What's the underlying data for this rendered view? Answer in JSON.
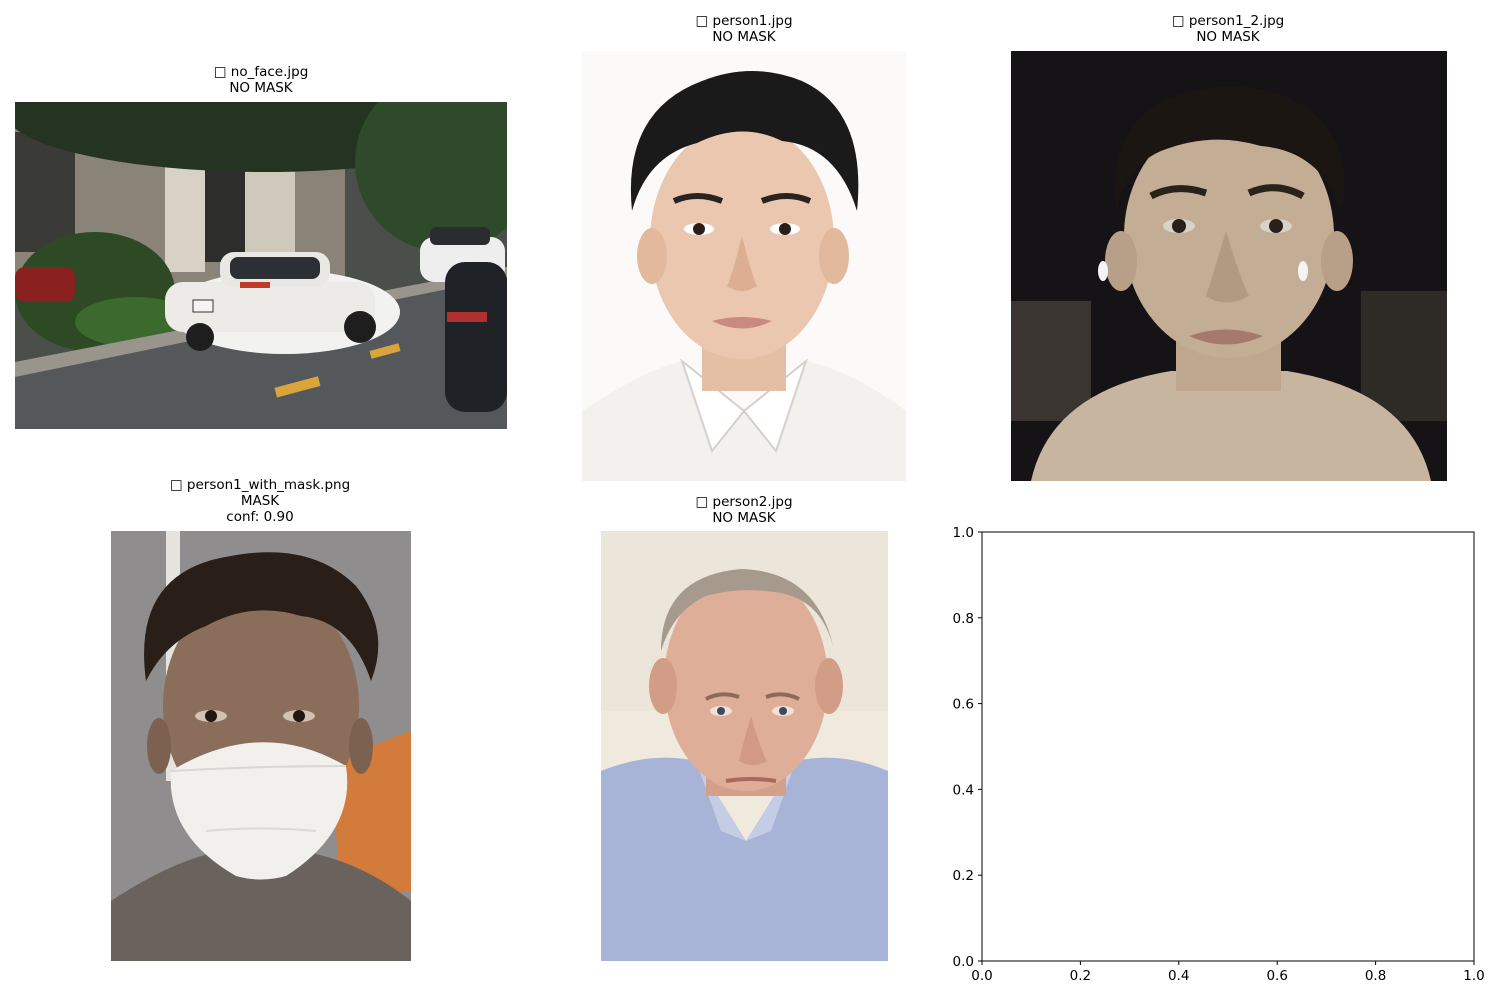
{
  "panels": [
    {
      "icon": "image-placeholder-glyph",
      "filename": "no_face.jpg",
      "status": "NO MASK",
      "conf": ""
    },
    {
      "icon": "image-placeholder-glyph",
      "filename": "person1.jpg",
      "status": "NO MASK",
      "conf": ""
    },
    {
      "icon": "image-placeholder-glyph",
      "filename": "person1_2.jpg",
      "status": "NO MASK",
      "conf": ""
    },
    {
      "icon": "image-placeholder-glyph",
      "filename": "person1_with_mask.png",
      "status": "MASK",
      "conf": "conf: 0.90"
    },
    {
      "icon": "image-placeholder-glyph",
      "filename": "person2.jpg",
      "status": "NO MASK",
      "conf": ""
    }
  ],
  "title_glyph": "□",
  "chart_data": {
    "type": "scatter",
    "title": "",
    "xlabel": "",
    "ylabel": "",
    "xlim": [
      0.0,
      1.0
    ],
    "ylim": [
      0.0,
      1.0
    ],
    "xticks": [
      "0.0",
      "0.2",
      "0.4",
      "0.6",
      "0.8",
      "1.0"
    ],
    "yticks": [
      "0.0",
      "0.2",
      "0.4",
      "0.6",
      "0.8",
      "1.0"
    ],
    "series": [],
    "grid": false
  }
}
